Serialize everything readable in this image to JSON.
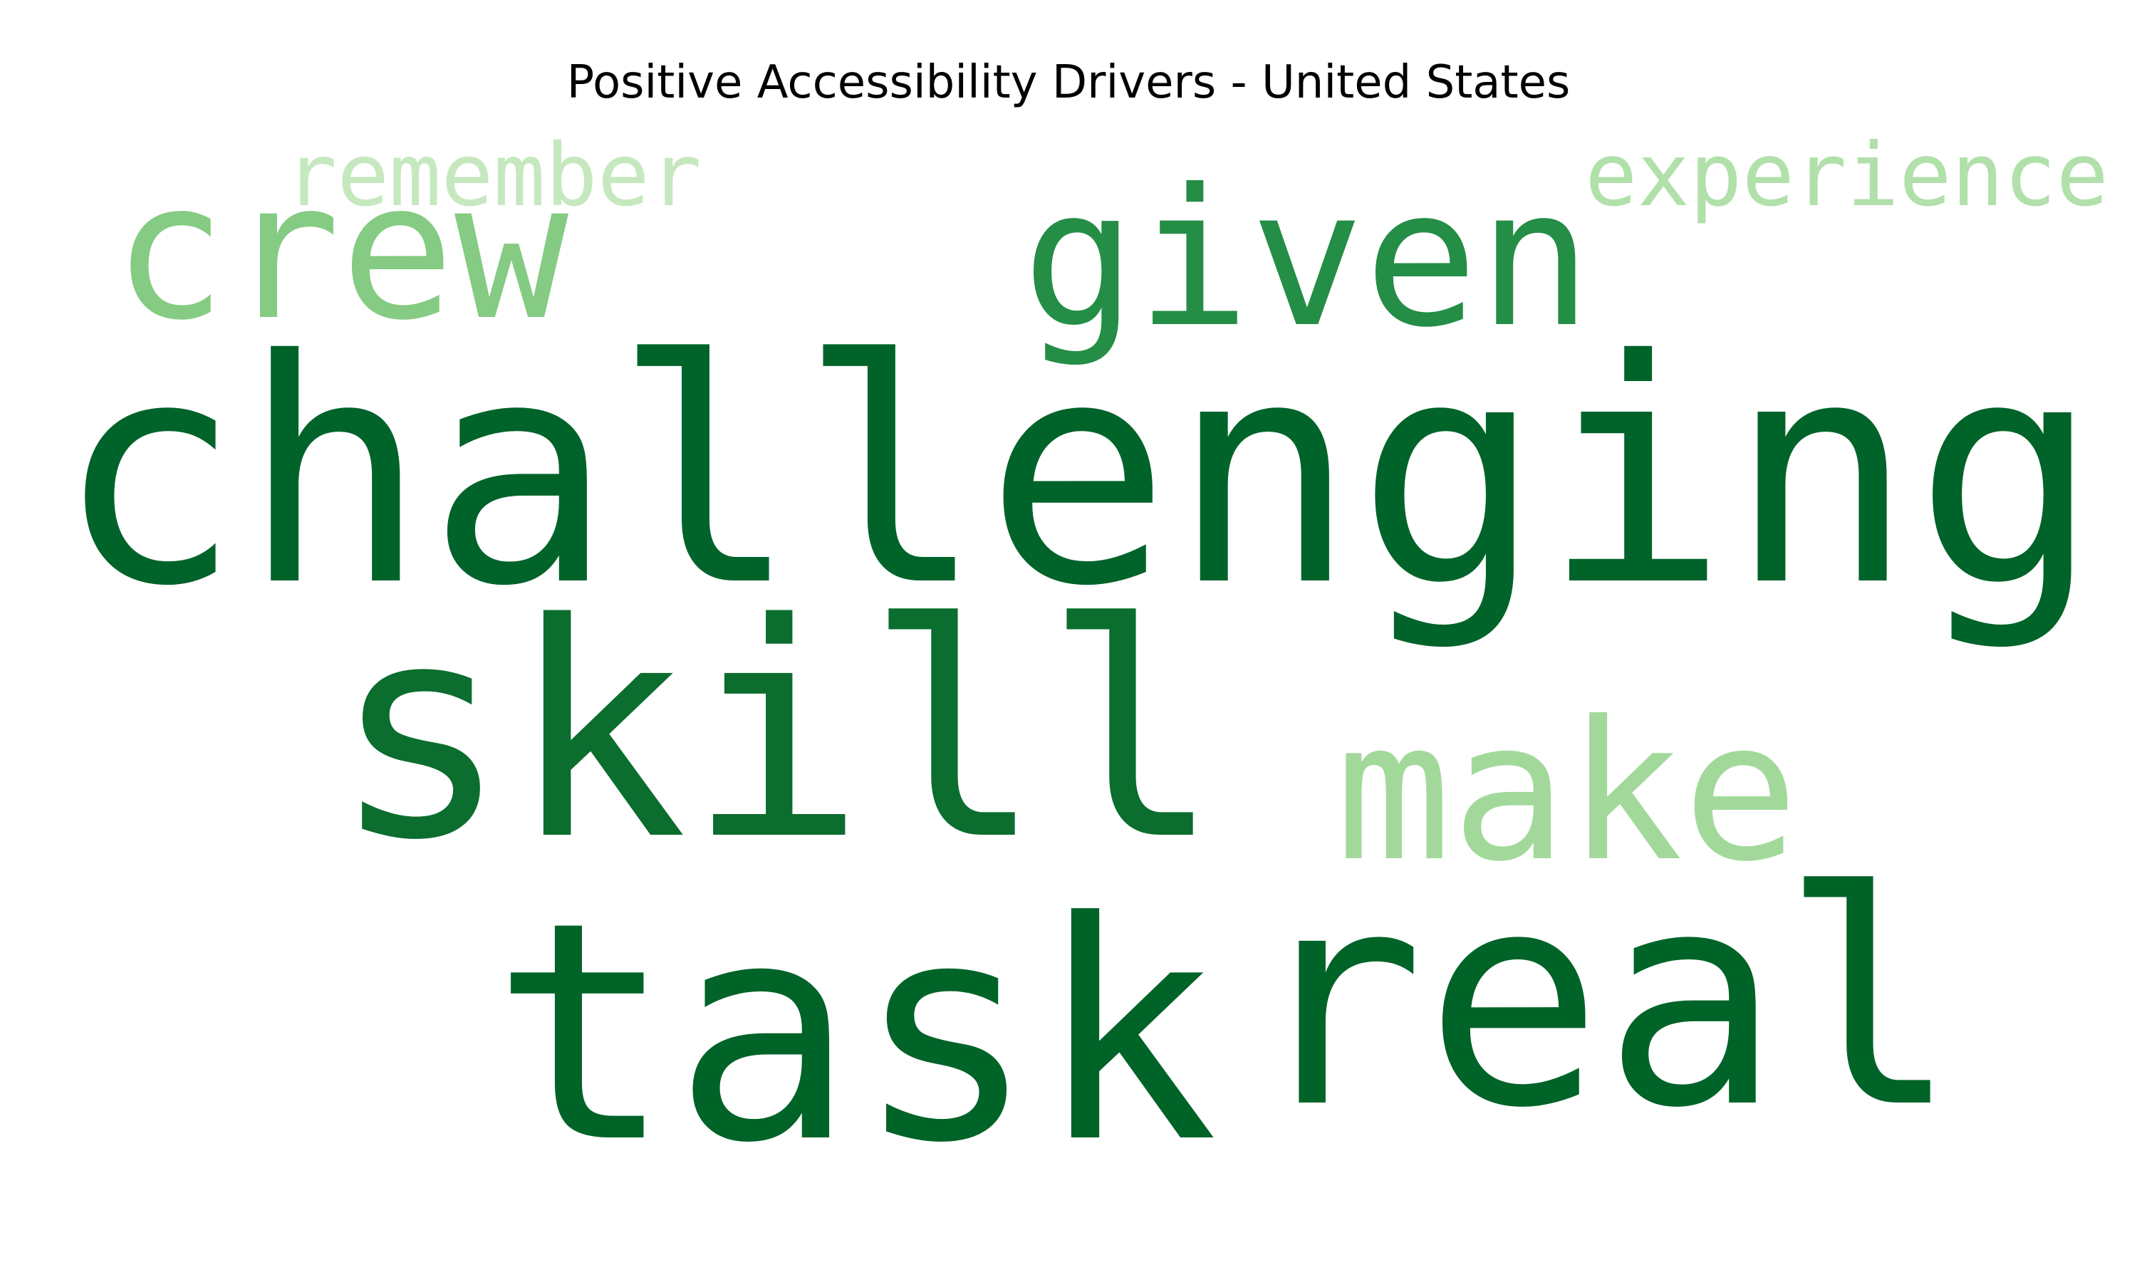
{
  "chart_data": {
    "type": "wordcloud",
    "title": "Positive Accessibility Drivers - United States",
    "colormap": "Greens",
    "background": "#ffffff",
    "words": [
      {
        "text": "challenging",
        "weight": 1.0,
        "color": "#00632a"
      },
      {
        "text": "task",
        "weight": 0.86,
        "color": "#006328"
      },
      {
        "text": "real",
        "weight": 0.84,
        "color": "#006328"
      },
      {
        "text": "skill",
        "weight": 0.76,
        "color": "#0b6d2e"
      },
      {
        "text": "given",
        "weight": 0.47,
        "color": "#248d46"
      },
      {
        "text": "crew",
        "weight": 0.43,
        "color": "#85cb83"
      },
      {
        "text": "make",
        "weight": 0.42,
        "color": "#a2d99b"
      },
      {
        "text": "remember",
        "weight": 0.21,
        "color": "#c6e8bf"
      },
      {
        "text": "experience",
        "weight": 0.2,
        "color": "#b1e0aa"
      }
    ]
  }
}
